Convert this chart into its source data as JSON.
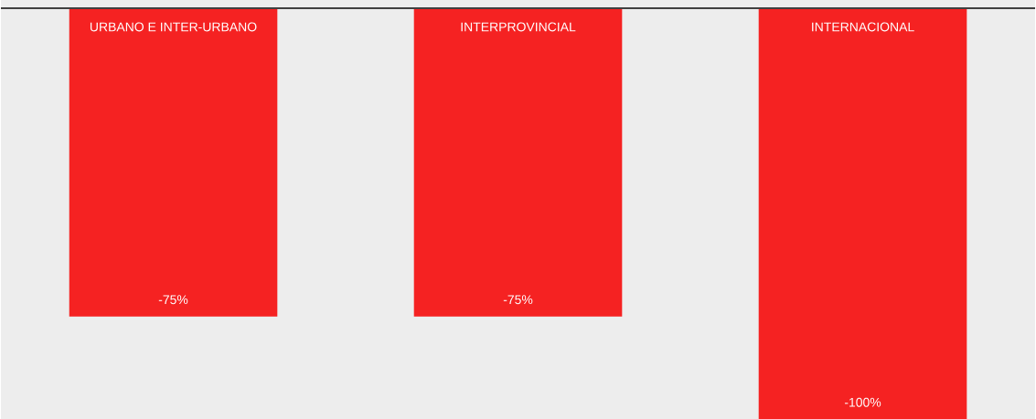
{
  "chart_data": {
    "type": "bar",
    "categories": [
      "URBANO E INTER-URBANO",
      "INTERPROVINCIAL",
      "INTERNACIONAL"
    ],
    "values": [
      -75,
      -75,
      -100
    ],
    "value_labels": [
      "-75%",
      "-75%",
      "-100%"
    ],
    "color": "#f52222",
    "ylim": [
      -100,
      0
    ]
  }
}
